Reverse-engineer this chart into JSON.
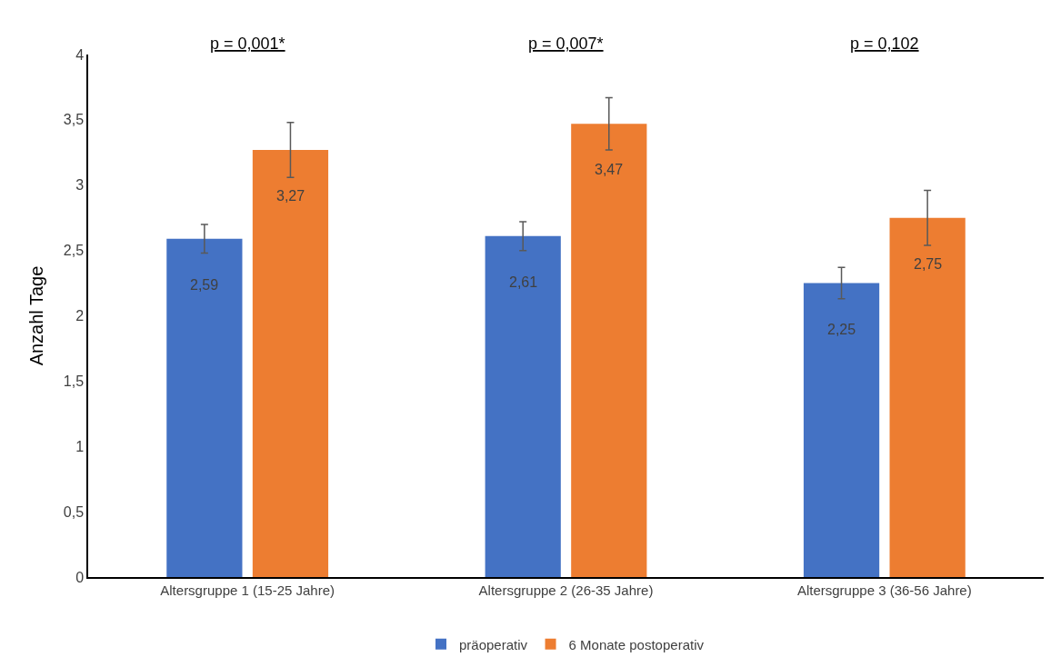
{
  "chart_data": {
    "type": "bar",
    "ylabel": "Anzahl Tage",
    "categories": [
      "Altersgruppe 1 (15-25 Jahre)",
      "Altersgruppe 2 (26-35 Jahre)",
      "Altersgruppe 3 (36-56 Jahre)"
    ],
    "series": [
      {
        "name": "präoperativ",
        "color": "#4472c4",
        "values": [
          2.59,
          2.61,
          2.25
        ],
        "errors": [
          0.11,
          0.11,
          0.12
        ],
        "value_labels": [
          "2,59",
          "2,61",
          "2,25"
        ]
      },
      {
        "name": "6 Monate postoperativ",
        "color": "#ed7d31",
        "values": [
          3.27,
          3.47,
          2.75
        ],
        "errors": [
          0.21,
          0.2,
          0.21
        ],
        "value_labels": [
          "3,27",
          "3,47",
          "2,75"
        ]
      }
    ],
    "annotations": [
      "p = 0,001*",
      "p = 0,007*",
      "p = 0,102"
    ],
    "ylim": [
      0,
      4
    ],
    "yticks": [
      0,
      {
        "value": 0.5,
        "label": "0,5"
      },
      1,
      {
        "value": 1.5,
        "label": "1,5"
      },
      2,
      {
        "value": 2.5,
        "label": "2,5"
      },
      3,
      {
        "value": 3.5,
        "label": "3,5"
      },
      4
    ],
    "grid": false,
    "legend": "bottom"
  }
}
